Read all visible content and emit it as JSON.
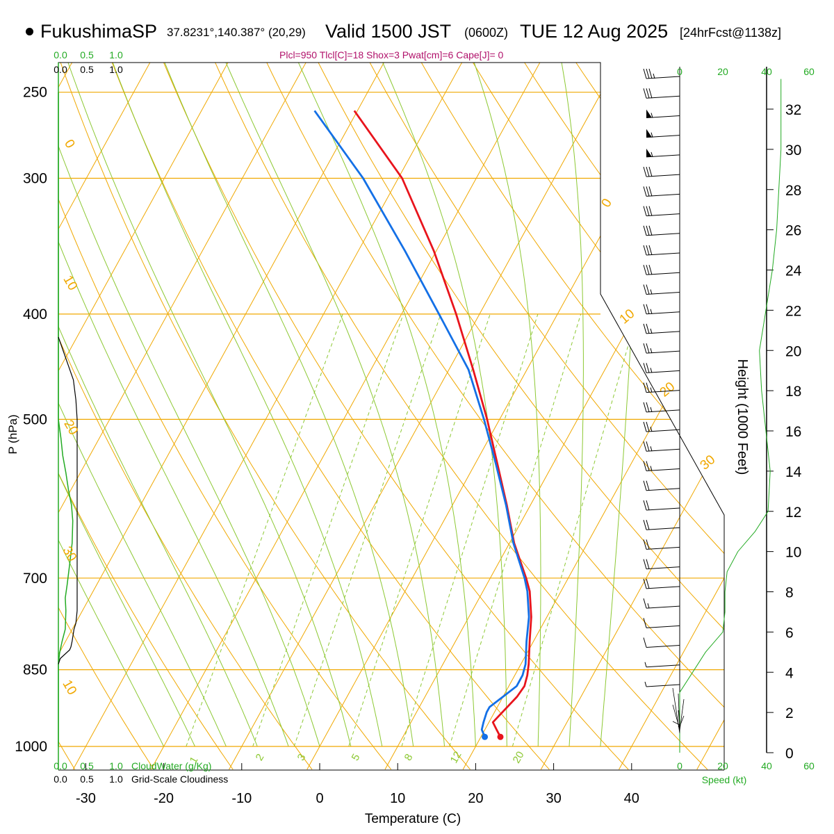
{
  "header": {
    "station": "FukushimaSP",
    "coords": "37.8231°,140.387° (20,29)",
    "valid": "Valid 1500 JST",
    "zulu": "(0600Z)",
    "date": "TUE 12 Aug 2025",
    "forecast": "[24hrFcst@1138z]",
    "indices": "Plcl=950 Tlcl[C]=18 Shox=3 Pwat[cm]=6 Cape[J]= 0"
  },
  "colors": {
    "temperature": "#e8141c",
    "dewpoint": "#1470e6",
    "isotherm": "#f0a800",
    "dry_adiabat": "#f0a800",
    "moist_adiabat": "#8cc832",
    "mixing_ratio": "#8cc832",
    "cloud_water": "#22aa22",
    "cloudiness": "#000000",
    "wind_speed": "#22aa22"
  },
  "chart_data": {
    "type": "line",
    "xlabel": "Temperature (C)",
    "ylabel": "P (hPa)",
    "xlim": [
      -35,
      36
    ],
    "ylim": [
      1000,
      250
    ],
    "x_scale": "skew-T",
    "y_scale": "log-pressure",
    "x_ticks": [
      "-30",
      "-20",
      "-10",
      "0",
      "10",
      "20",
      "30",
      "40"
    ],
    "pressure_ticks": [
      "250",
      "300",
      "400",
      "500",
      "700",
      "850",
      "1000"
    ],
    "isotherm_labels": [
      "0",
      "10",
      "20",
      "30",
      "10",
      "0",
      "10",
      "20",
      "30"
    ],
    "mixing_ratio_labels": [
      "1",
      "2",
      "3",
      "5",
      "8",
      "12",
      "20"
    ],
    "series": [
      {
        "name": "temperature",
        "points": [
          [
            22.5,
            980
          ],
          [
            21.5,
            965
          ],
          [
            20.5,
            950
          ],
          [
            21.8,
            900
          ],
          [
            22.0,
            880
          ],
          [
            21.6,
            860
          ],
          [
            21.0,
            840
          ],
          [
            19.5,
            800
          ],
          [
            18.0,
            760
          ],
          [
            16.0,
            720
          ],
          [
            14.6,
            700
          ],
          [
            10.6,
            650
          ],
          [
            7.0,
            600
          ],
          [
            2.9,
            550
          ],
          [
            -1.6,
            500
          ],
          [
            -6.9,
            450
          ],
          [
            -13.0,
            400
          ],
          [
            -20.3,
            350
          ],
          [
            -29.5,
            300
          ],
          [
            -40.4,
            260
          ]
        ]
      },
      {
        "name": "dewpoint",
        "points": [
          [
            20.5,
            980
          ],
          [
            19.6,
            965
          ],
          [
            19.3,
            950
          ],
          [
            19.0,
            930
          ],
          [
            19.0,
            920
          ],
          [
            20.0,
            900
          ],
          [
            21.0,
            880
          ],
          [
            21.0,
            860
          ],
          [
            20.6,
            840
          ],
          [
            19.1,
            800
          ],
          [
            17.7,
            760
          ],
          [
            15.7,
            720
          ],
          [
            14.4,
            700
          ],
          [
            10.5,
            650
          ],
          [
            6.9,
            600
          ],
          [
            2.7,
            550
          ],
          [
            -2.0,
            500
          ],
          [
            -7.5,
            450
          ],
          [
            -15.2,
            400
          ],
          [
            -24.0,
            350
          ],
          [
            -34.5,
            300
          ],
          [
            -45.5,
            260
          ]
        ]
      }
    ],
    "cloud_water": {
      "xlabel": "CloudWater (g/Kg)",
      "ticks": [
        "0.0",
        "0.5",
        "1.0"
      ],
      "points": [
        [
          0.0,
          250
        ],
        [
          0.0,
          500
        ],
        [
          0.04,
          520
        ],
        [
          0.07,
          540
        ],
        [
          0.12,
          560
        ],
        [
          0.16,
          580
        ],
        [
          0.21,
          600
        ],
        [
          0.23,
          620
        ],
        [
          0.22,
          650
        ],
        [
          0.18,
          680
        ],
        [
          0.14,
          710
        ],
        [
          0.11,
          730
        ],
        [
          0.12,
          750
        ],
        [
          0.11,
          780
        ],
        [
          0.06,
          800
        ],
        [
          0.02,
          820
        ],
        [
          0.0,
          840
        ],
        [
          0.0,
          1000
        ]
      ]
    },
    "cloudiness": {
      "xlabel": "Grid-Scale Cloudiness",
      "ticks": [
        "0.0",
        "0.5",
        "1.0"
      ],
      "points": [
        [
          0.0,
          420
        ],
        [
          0.24,
          460
        ],
        [
          0.28,
          480
        ],
        [
          0.3,
          500
        ],
        [
          0.3,
          520
        ],
        [
          0.3,
          700
        ],
        [
          0.3,
          750
        ],
        [
          0.28,
          770
        ],
        [
          0.25,
          780
        ],
        [
          0.22,
          800
        ],
        [
          0.2,
          810
        ],
        [
          0.18,
          815
        ],
        [
          0.03,
          830
        ],
        [
          0.0,
          840
        ]
      ]
    },
    "wind": {
      "xlabel": "Speed (kt)",
      "speed_ticks": [
        "0",
        "20",
        "40",
        "60"
      ],
      "speed_profile": [
        [
          47,
          33.5
        ],
        [
          47,
          30
        ],
        [
          46,
          28
        ],
        [
          45,
          26
        ],
        [
          43,
          24
        ],
        [
          40,
          22
        ],
        [
          37,
          20
        ],
        [
          38,
          18
        ],
        [
          40,
          16
        ],
        [
          42,
          14
        ],
        [
          41,
          12
        ],
        [
          35,
          11
        ],
        [
          27,
          10
        ],
        [
          22,
          9
        ],
        [
          21,
          8
        ],
        [
          21,
          7
        ],
        [
          20,
          6
        ],
        [
          12,
          5
        ],
        [
          6,
          4
        ],
        [
          0,
          3
        ],
        [
          0,
          0
        ]
      ],
      "barb_speeds_kt": [
        35,
        30,
        55,
        55,
        55,
        30,
        30,
        30,
        30,
        30,
        30,
        25,
        25,
        25,
        25,
        25,
        25,
        25,
        25,
        25,
        25,
        20,
        20,
        20,
        20,
        20,
        20,
        15,
        10,
        10,
        5,
        5
      ]
    },
    "height_axis": {
      "label": "Height (1000 Feet)",
      "ticks": [
        "0",
        "2",
        "4",
        "6",
        "8",
        "10",
        "12",
        "14",
        "16",
        "18",
        "20",
        "22",
        "24",
        "26",
        "28",
        "30",
        "32"
      ]
    }
  }
}
